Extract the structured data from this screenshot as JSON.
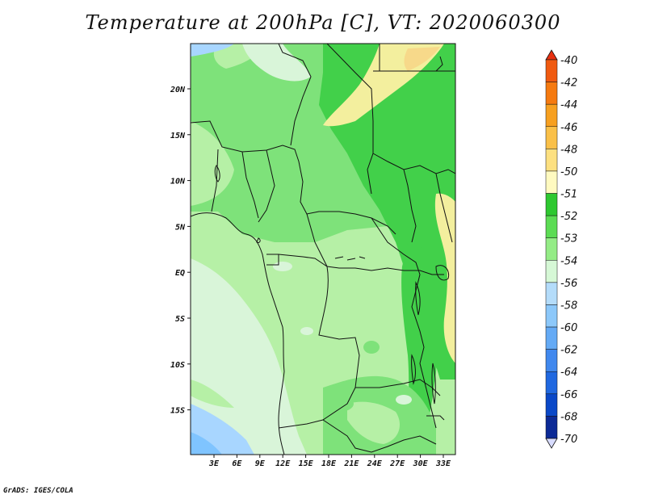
{
  "title": "Temperature at 200hPa [C], VT: 2020060300",
  "credit": "GrADS: IGES/COLA",
  "map": {
    "lat_labels": [
      "20N",
      "15N",
      "10N",
      "5N",
      "EQ",
      "5S",
      "10S",
      "15S"
    ],
    "lon_labels": [
      "3E",
      "6E",
      "9E",
      "12E",
      "15E",
      "18E",
      "21E",
      "24E",
      "27E",
      "30E",
      "33E"
    ],
    "field_colors": {
      "c54": "#d9f5d9",
      "c53": "#b6f0a6",
      "c52": "#7ee27a",
      "c51": "#42d04a",
      "c50": "#f3ef9e",
      "c48": "#f7d98a",
      "c56": "#a8d6ff",
      "c58": "#7fc4ff"
    }
  },
  "colorbar": {
    "levels": [
      "-40",
      "-42",
      "-44",
      "-46",
      "-48",
      "-50",
      "-51",
      "-52",
      "-53",
      "-54",
      "-56",
      "-58",
      "-60",
      "-62",
      "-64",
      "-66",
      "-68",
      "-70"
    ],
    "colors": [
      "#e83010",
      "#f05a10",
      "#f57a10",
      "#f7a020",
      "#fac048",
      "#fde080",
      "#fffac0",
      "#2ec830",
      "#5cdc54",
      "#94ec86",
      "#d6f8d6",
      "#b4dcfa",
      "#8cc8fa",
      "#64aaf5",
      "#4088ee",
      "#2068e0",
      "#0a48c8",
      "#0c2a96",
      "#0a1068"
    ]
  }
}
